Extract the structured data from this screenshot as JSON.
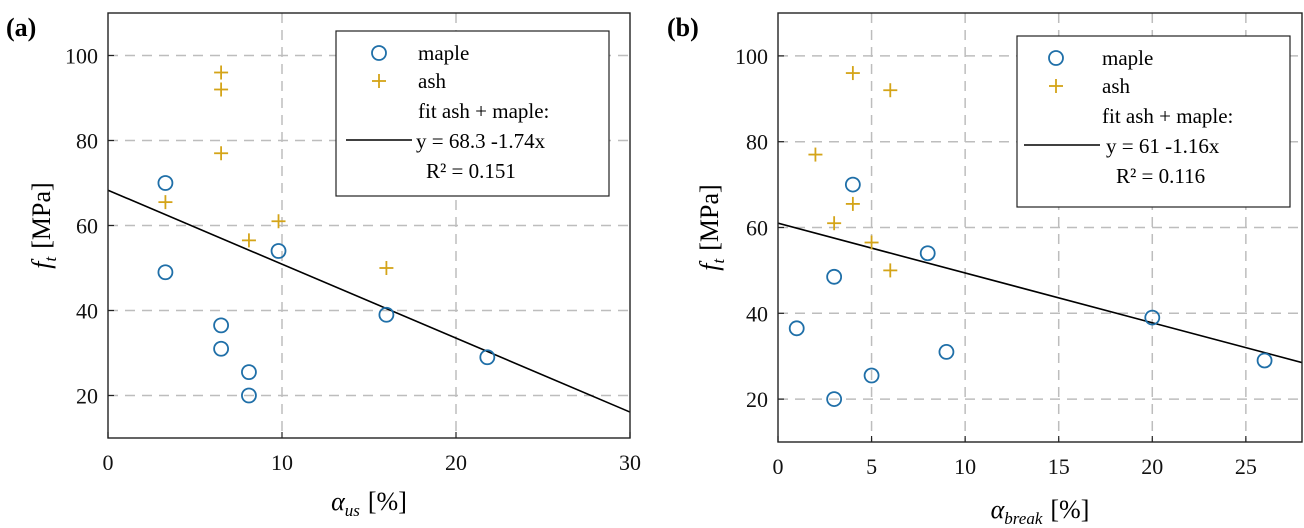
{
  "chart_data": [
    {
      "type": "scatter",
      "panel_label": "(a)",
      "xlabel": "α",
      "xlabel_sub": "us",
      "xlabel_unit": "[%]",
      "ylabel": "f",
      "ylabel_sub": "t",
      "ylabel_unit": "[MPa]",
      "xlim": [
        0,
        30
      ],
      "ylim": [
        10,
        110
      ],
      "xticks": [
        0,
        10,
        20,
        30
      ],
      "yticks": [
        20,
        40,
        60,
        80,
        100
      ],
      "grid": true,
      "legend_position": "top-right",
      "series": [
        {
          "name": "maple",
          "marker": "circle",
          "color": "#1f6fa8",
          "points": [
            [
              3.3,
              70
            ],
            [
              3.3,
              49
            ],
            [
              6.5,
              36.5
            ],
            [
              6.5,
              31
            ],
            [
              8.1,
              25.5
            ],
            [
              8.1,
              20
            ],
            [
              9.8,
              54
            ],
            [
              16,
              39
            ],
            [
              21.8,
              29
            ]
          ]
        },
        {
          "name": "ash",
          "marker": "plus",
          "color": "#d4a418",
          "points": [
            [
              6.5,
              96
            ],
            [
              6.5,
              92
            ],
            [
              6.5,
              77
            ],
            [
              3.3,
              65.5
            ],
            [
              9.8,
              61
            ],
            [
              8.1,
              56.5
            ],
            [
              16,
              50
            ]
          ]
        }
      ],
      "fit": {
        "legend_title": "fit ash + maple:",
        "equation": "y = 68.3  -1.74x",
        "r2": "R² = 0.151",
        "intercept": 68.3,
        "slope": -1.74,
        "color": "#000000"
      }
    },
    {
      "type": "scatter",
      "panel_label": "(b)",
      "xlabel": "α",
      "xlabel_sub": "break",
      "xlabel_unit": "[%]",
      "ylabel": "f",
      "ylabel_sub": "t",
      "ylabel_unit": "[MPa]",
      "xlim": [
        0,
        28
      ],
      "ylim": [
        10,
        110
      ],
      "xticks": [
        0,
        5,
        10,
        15,
        20,
        25
      ],
      "yticks": [
        20,
        40,
        60,
        80,
        100
      ],
      "grid": true,
      "legend_position": "top-right",
      "series": [
        {
          "name": "maple",
          "marker": "circle",
          "color": "#1f6fa8",
          "points": [
            [
              1,
              36.5
            ],
            [
              3,
              48.5
            ],
            [
              3,
              20
            ],
            [
              4,
              70
            ],
            [
              5,
              25.5
            ],
            [
              8,
              54
            ],
            [
              9,
              31
            ],
            [
              20,
              39
            ],
            [
              26,
              29
            ]
          ]
        },
        {
          "name": "ash",
          "marker": "plus",
          "color": "#d4a418",
          "points": [
            [
              2,
              77
            ],
            [
              3,
              61
            ],
            [
              4,
              96
            ],
            [
              4,
              65.5
            ],
            [
              5,
              56.5
            ],
            [
              6,
              92
            ],
            [
              6,
              50
            ]
          ]
        }
      ],
      "fit": {
        "legend_title": "fit ash + maple:",
        "equation": "y = 61  -1.16x",
        "r2": "R² = 0.116",
        "intercept": 61,
        "slope": -1.16,
        "color": "#000000"
      }
    }
  ]
}
